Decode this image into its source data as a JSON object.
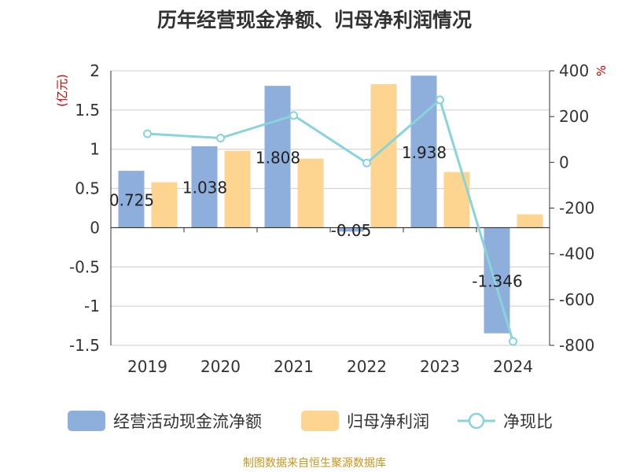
{
  "chart_data": {
    "type": "bar",
    "title": "历年经营现金净额、归母净利润情况",
    "categories": [
      "2019",
      "2020",
      "2021",
      "2022",
      "2023",
      "2024"
    ],
    "series": [
      {
        "name": "经营活动现金流净额",
        "type": "bar",
        "axis": "left",
        "color": "#8eaedb",
        "values": [
          0.725,
          1.038,
          1.808,
          -0.05,
          1.938,
          -1.346
        ]
      },
      {
        "name": "归母净利润",
        "type": "bar",
        "axis": "left",
        "color": "#fed590",
        "values": [
          0.58,
          0.98,
          0.88,
          1.83,
          0.71,
          0.17
        ]
      },
      {
        "name": "净现比",
        "type": "line",
        "axis": "right",
        "color": "#88d4d8",
        "values": [
          125,
          106,
          205,
          -3,
          273,
          -783
        ]
      }
    ],
    "data_labels": [
      "0.725",
      "1.038",
      "1.808",
      "-0.05",
      "1.938",
      "-1.346"
    ],
    "y_left": {
      "label": "(亿元)",
      "lim": [
        -1.5,
        2
      ],
      "ticks": [
        "2",
        "1.5",
        "1",
        "0.5",
        "0",
        "-0.5",
        "-1",
        "-1.5"
      ],
      "tick_values": [
        2,
        1.5,
        1,
        0.5,
        0,
        -0.5,
        -1,
        -1.5
      ]
    },
    "y_right": {
      "label": "%",
      "lim": [
        -800,
        400
      ],
      "ticks": [
        "400",
        "200",
        "0",
        "-200",
        "-400",
        "-600",
        "-800"
      ],
      "tick_values": [
        400,
        200,
        0,
        -200,
        -400,
        -600,
        -800
      ]
    },
    "grid": true,
    "legend_position": "bottom",
    "source": "制图数据来自恒生聚源数据库"
  }
}
